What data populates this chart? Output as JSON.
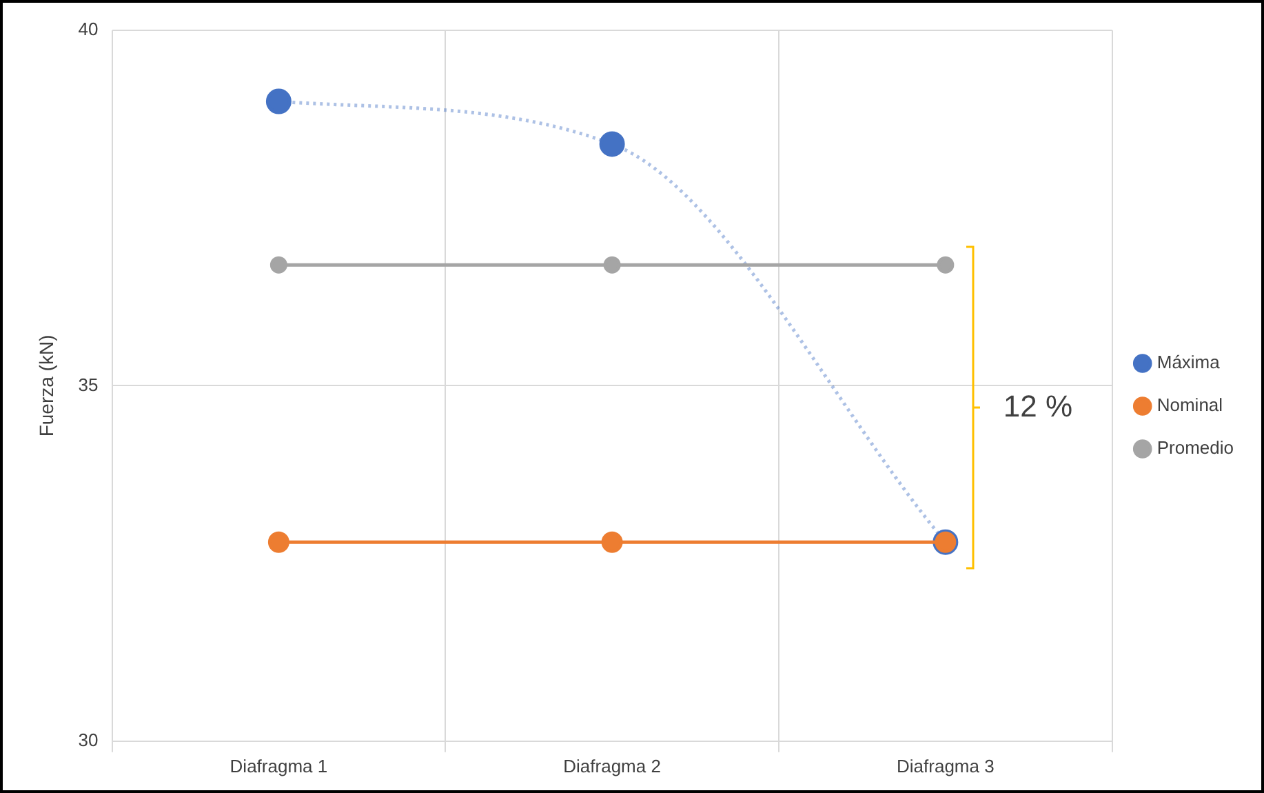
{
  "chart_data": {
    "type": "line",
    "ylabel": "Fuerza (kN)",
    "categories": [
      "Diafragma 1",
      "Diafragma 2",
      "Diafragma 3"
    ],
    "series": [
      {
        "name": "Máxima",
        "color": "#4472c4",
        "values": [
          39.0,
          38.4,
          32.8
        ],
        "line_style": "dotted"
      },
      {
        "name": "Nominal",
        "color": "#ed7d31",
        "values": [
          32.8,
          32.8,
          32.8
        ],
        "line_style": "solid"
      },
      {
        "name": "Promedio",
        "color": "#a5a5a5",
        "values": [
          36.7,
          36.7,
          36.7
        ],
        "line_style": "solid"
      }
    ],
    "ylim": [
      30,
      40
    ],
    "yticks": [
      30,
      35,
      40
    ],
    "grid": true,
    "legend": "right",
    "marker": "circle",
    "annotations": [
      "12 %"
    ]
  }
}
